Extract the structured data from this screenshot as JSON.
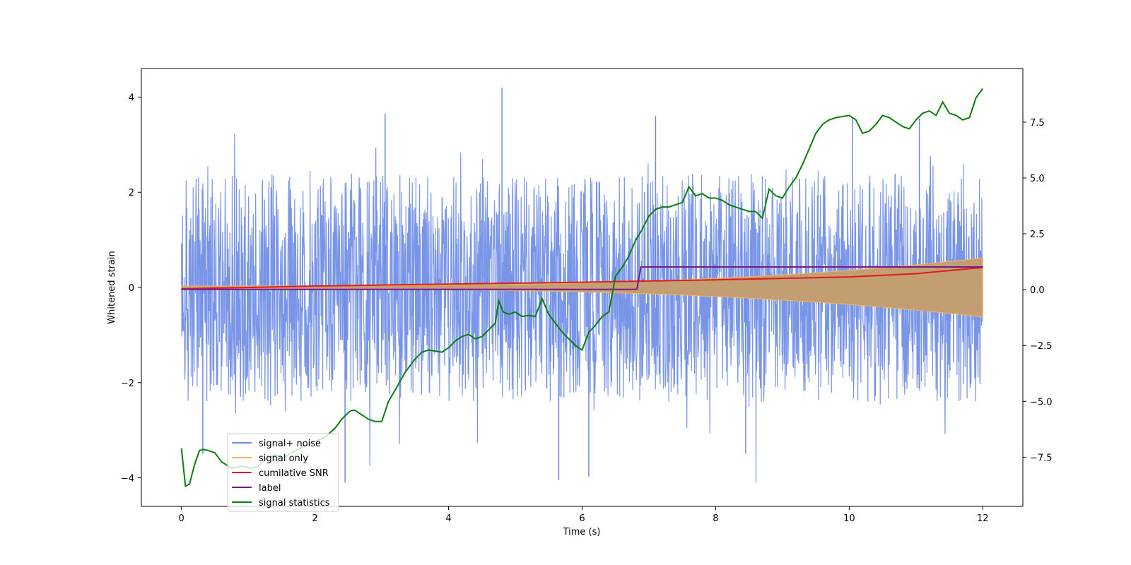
{
  "chart_data": {
    "type": "line",
    "xlabel": "Time (s)",
    "ylabel": "Whitened strain",
    "xlim": [
      -0.6,
      12.6
    ],
    "ylim": [
      -4.6,
      4.6
    ],
    "y2lim": [
      -9.7,
      9.9
    ],
    "xticks": [
      0,
      2,
      4,
      6,
      8,
      10,
      12
    ],
    "yticks": [
      -4,
      -2,
      0,
      2,
      4
    ],
    "y2ticks": [
      -7.5,
      -5.0,
      -2.5,
      0.0,
      2.5,
      5.0,
      7.5
    ],
    "xtick_labels": [
      "0",
      "2",
      "4",
      "6",
      "8",
      "10",
      "12"
    ],
    "ytick_labels": [
      "−4",
      "−2",
      "0",
      "2",
      "4"
    ],
    "y2tick_labels": [
      "−7.5",
      "−5.0",
      "−2.5",
      "0.0",
      "2.5",
      "5.0",
      "7.5"
    ],
    "grid": false,
    "legend_position": "lower-left",
    "colors": {
      "signal_noise": "#6a8ae6",
      "signal_only": "#f5b461",
      "signal_only_fill": "#c29e72",
      "cumulative_snr": "#e31a1c",
      "label": "#7a1a8a",
      "signal_statistics": "#0a7d0a"
    },
    "series": [
      {
        "name": "signal+ noise",
        "axis": "left",
        "kind": "noise",
        "time_range": [
          0,
          12
        ],
        "envelope": {
          "typical_peak": 2.4,
          "extreme_max": 4.2,
          "extreme_min": -4.1
        }
      },
      {
        "name": "signal only",
        "axis": "left",
        "kind": "chirp-envelope",
        "time_range": [
          0,
          12
        ],
        "amplitude_start": 0.03,
        "amplitude_end": 0.62
      },
      {
        "name": "cumilative SNR",
        "axis": "left",
        "x": [
          0,
          2,
          4,
          6,
          8,
          10,
          11,
          12
        ],
        "y": [
          -0.03,
          0.03,
          0.07,
          0.11,
          0.16,
          0.22,
          0.29,
          0.42
        ]
      },
      {
        "name": "label",
        "axis": "left",
        "x": [
          0,
          6.82,
          6.88,
          12
        ],
        "y": [
          -0.04,
          -0.04,
          0.43,
          0.43
        ]
      },
      {
        "name": "signal statistics",
        "axis": "right",
        "x": [
          0,
          0.06,
          0.12,
          0.2,
          0.27,
          0.33,
          0.4,
          0.5,
          0.6,
          0.75,
          0.9,
          1.05,
          1.15,
          1.25,
          1.4,
          1.55,
          1.7,
          1.85,
          2.0,
          2.15,
          2.3,
          2.4,
          2.5,
          2.55,
          2.6,
          2.7,
          2.8,
          2.9,
          3.0,
          3.1,
          3.2,
          3.35,
          3.5,
          3.6,
          3.7,
          3.8,
          3.9,
          4.0,
          4.1,
          4.2,
          4.3,
          4.4,
          4.5,
          4.6,
          4.7,
          4.75,
          4.82,
          4.9,
          5.0,
          5.1,
          5.2,
          5.3,
          5.4,
          5.5,
          5.6,
          5.7,
          5.8,
          5.9,
          6.0,
          6.1,
          6.2,
          6.3,
          6.4,
          6.5,
          6.6,
          6.7,
          6.8,
          6.9,
          7.0,
          7.1,
          7.2,
          7.3,
          7.4,
          7.5,
          7.6,
          7.7,
          7.8,
          7.9,
          8.0,
          8.1,
          8.2,
          8.3,
          8.4,
          8.5,
          8.6,
          8.7,
          8.8,
          8.9,
          9.0,
          9.1,
          9.2,
          9.3,
          9.4,
          9.5,
          9.6,
          9.7,
          9.8,
          9.9,
          10.0,
          10.1,
          10.2,
          10.3,
          10.4,
          10.5,
          10.6,
          10.7,
          10.8,
          10.9,
          11.0,
          11.1,
          11.2,
          11.3,
          11.4,
          11.5,
          11.6,
          11.7,
          11.8,
          11.9,
          12.0
        ],
        "y": [
          -7.1,
          -8.8,
          -8.7,
          -7.8,
          -7.2,
          -7.15,
          -7.2,
          -7.3,
          -7.7,
          -8.0,
          -7.9,
          -8.0,
          -7.9,
          -7.6,
          -7.4,
          -7.5,
          -7.2,
          -7.0,
          -6.8,
          -6.6,
          -6.2,
          -5.8,
          -5.5,
          -5.4,
          -5.4,
          -5.6,
          -5.8,
          -5.9,
          -5.9,
          -5.0,
          -4.5,
          -3.7,
          -3.1,
          -2.8,
          -2.7,
          -2.75,
          -2.8,
          -2.6,
          -2.3,
          -2.1,
          -2.0,
          -2.2,
          -2.1,
          -1.8,
          -1.5,
          -0.5,
          -1.0,
          -1.1,
          -1.0,
          -1.2,
          -1.15,
          -1.2,
          -0.4,
          -1.1,
          -1.5,
          -1.9,
          -2.2,
          -2.5,
          -2.7,
          -1.9,
          -1.6,
          -1.2,
          -1.0,
          0.6,
          1.0,
          1.5,
          2.2,
          2.7,
          3.3,
          3.6,
          3.7,
          3.7,
          3.8,
          3.9,
          4.6,
          4.2,
          4.3,
          4.1,
          4.1,
          4.0,
          3.8,
          3.7,
          3.6,
          3.5,
          3.5,
          3.2,
          4.5,
          4.2,
          4.1,
          4.6,
          5.0,
          5.6,
          6.3,
          7.0,
          7.4,
          7.6,
          7.7,
          7.75,
          7.8,
          7.6,
          7.0,
          7.1,
          7.4,
          7.8,
          7.7,
          7.5,
          7.3,
          7.2,
          7.6,
          7.9,
          8.0,
          7.8,
          8.4,
          7.9,
          7.8,
          7.6,
          7.7,
          8.6,
          9.0
        ]
      }
    ]
  }
}
